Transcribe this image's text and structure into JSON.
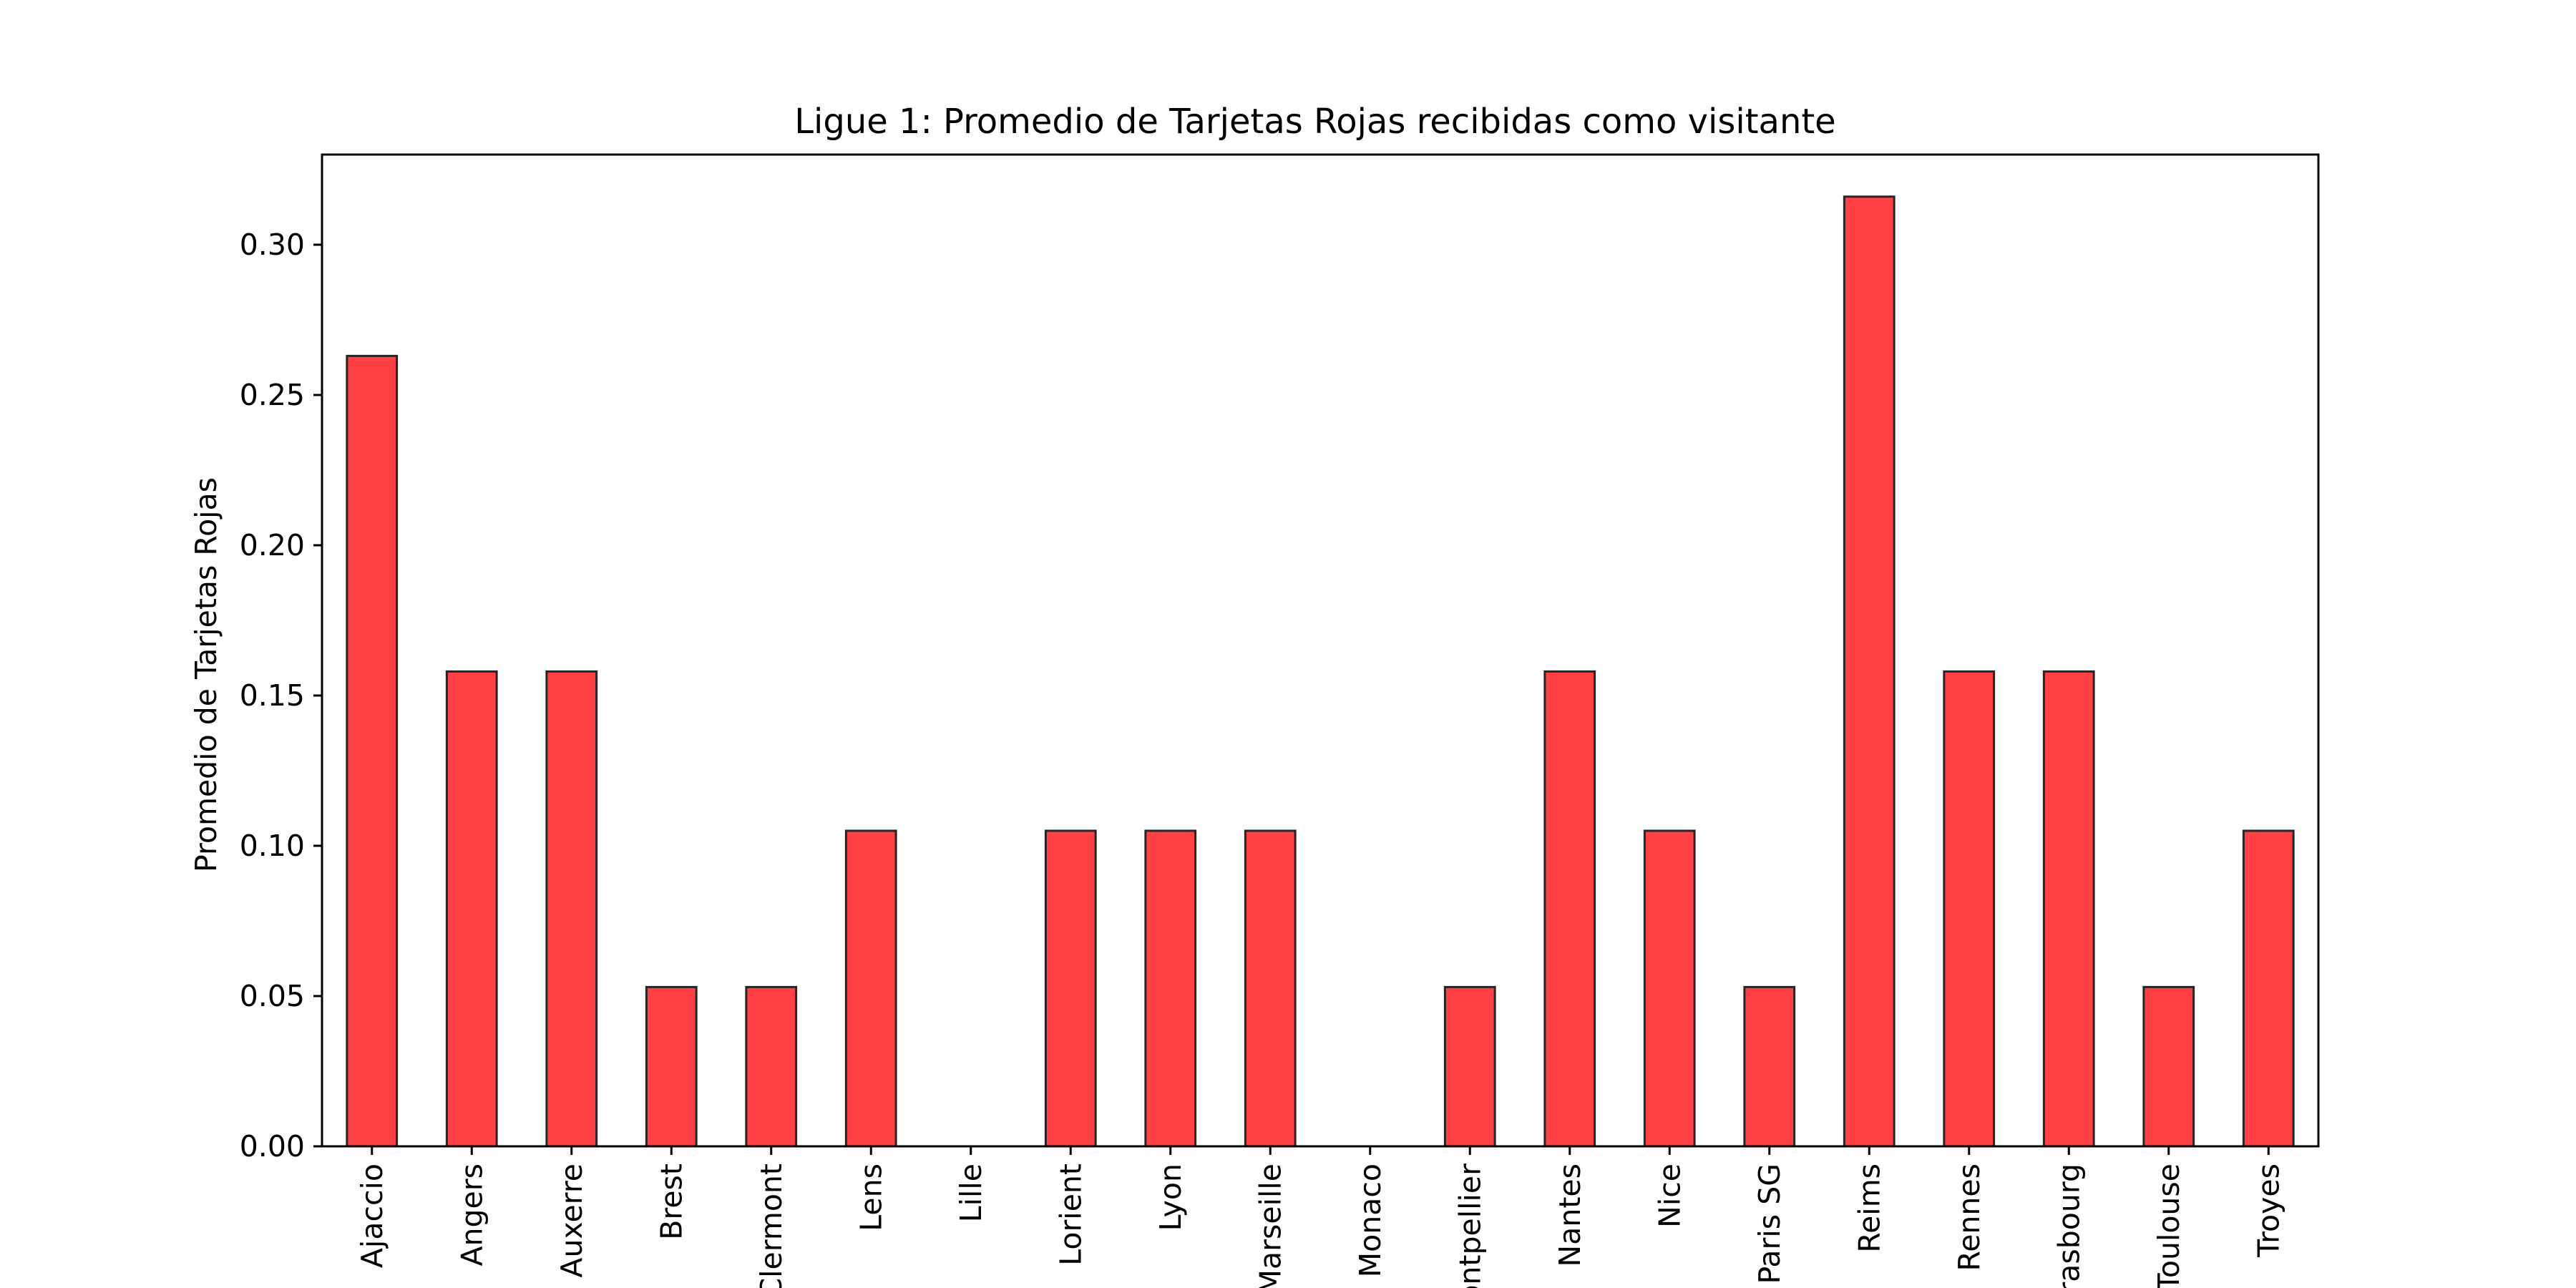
{
  "chart_data": {
    "type": "bar",
    "title": "Ligue 1: Promedio de Tarjetas Rojas recibidas como visitante",
    "xlabel": "",
    "ylabel": "Promedio de Tarjetas Rojas",
    "ylim": [
      0,
      0.33
    ],
    "yticks": [
      0.0,
      0.05,
      0.1,
      0.15,
      0.2,
      0.25,
      0.3
    ],
    "ytick_labels": [
      "0.00",
      "0.05",
      "0.10",
      "0.15",
      "0.20",
      "0.25",
      "0.30"
    ],
    "grid": false,
    "bar_color": "#ff4045",
    "edge_color": "#262626",
    "categories": [
      "Ajaccio",
      "Angers",
      "Auxerre",
      "Brest",
      "Clermont",
      "Lens",
      "Lille",
      "Lorient",
      "Lyon",
      "Marseille",
      "Monaco",
      "Montpellier",
      "Nantes",
      "Nice",
      "Paris SG",
      "Reims",
      "Rennes",
      "Strasbourg",
      "Toulouse",
      "Troyes"
    ],
    "values": [
      0.263,
      0.158,
      0.158,
      0.053,
      0.053,
      0.105,
      0.0,
      0.105,
      0.105,
      0.105,
      0.0,
      0.053,
      0.158,
      0.105,
      0.053,
      0.316,
      0.158,
      0.158,
      0.053,
      0.105
    ]
  }
}
